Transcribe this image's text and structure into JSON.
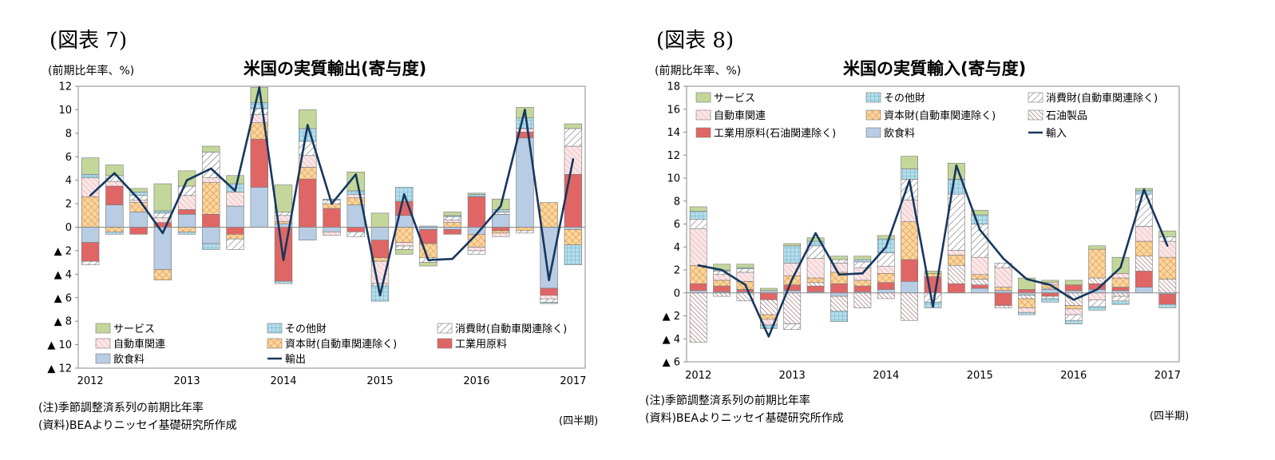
{
  "fig7": {
    "fig_label": "(図表 7)",
    "unit": "(前期比年率、%)",
    "note1": "(注)季節調整済系列の前期比年率",
    "note2": "(資料)BEAよりニッセイ基礎研究所作成",
    "period": "(四半期)"
  },
  "fig8": {
    "fig_label": "(図表 8)",
    "unit": "(前期比年率、%)",
    "note1": "(注)季節調整済系列の前期比年率",
    "note2": "(資料)BEAよりニッセイ基礎研究所作成",
    "period": "(四半期)"
  },
  "colors": {
    "services": "#c4d79b",
    "other": "#b7dde8",
    "consumer": "#ffffff",
    "auto": "#f2c9cc",
    "capital": "#fcd5a0",
    "petroleum": "#ffffff",
    "industrial": "#e06666",
    "food": "#b8cce4",
    "line": "#17375e"
  },
  "chart_data": [
    {
      "type": "bar",
      "title": "米国の実質輸出(寄与度)",
      "stacked": true,
      "ylim": [
        -12,
        12
      ],
      "y_ticks": [
        -12,
        -10,
        -8,
        -6,
        -4,
        -2,
        0,
        2,
        4,
        6,
        8,
        10,
        12
      ],
      "y_tick_labels": [
        "▲ 12",
        "▲ 10",
        "▲ 8",
        "▲ 6",
        "▲ 4",
        "▲ 2",
        "0",
        "2",
        "4",
        "6",
        "8",
        "10",
        "12"
      ],
      "x_tick_labels": [
        "2012",
        "2013",
        "2014",
        "2015",
        "2016",
        "2017"
      ],
      "legend_position": "bottom-left",
      "grid": false,
      "categories": [
        "2012Q1",
        "2012Q2",
        "2012Q3",
        "2012Q4",
        "2013Q1",
        "2013Q2",
        "2013Q3",
        "2013Q4",
        "2014Q1",
        "2014Q2",
        "2014Q3",
        "2014Q4",
        "2015Q1",
        "2015Q2",
        "2015Q3",
        "2015Q4",
        "2016Q1",
        "2016Q2",
        "2016Q3",
        "2016Q4",
        "2017Q1"
      ],
      "series": [
        {
          "name": "飲食料",
          "key": "food",
          "values": [
            -1.3,
            1.9,
            1.3,
            -3.6,
            1.1,
            -1.4,
            1.8,
            3.4,
            0.3,
            -1.1,
            -0.4,
            1.9,
            -1.1,
            1.0,
            -0.2,
            -0.2,
            -0.6,
            1.1,
            7.6,
            -5.2,
            -0.2
          ]
        },
        {
          "name": "工業用原料",
          "key": "industrial",
          "values": [
            -1.6,
            1.6,
            -0.6,
            0.4,
            0.4,
            1.1,
            -0.6,
            4.1,
            -4.6,
            4.1,
            1.6,
            -0.4,
            -1.5,
            1.2,
            -1.2,
            -0.4,
            2.6,
            -0.3,
            0.5,
            -0.6,
            4.5
          ]
        },
        {
          "name": "資本財(自動車関連除く)",
          "key": "capital",
          "values": [
            2.6,
            -0.4,
            0.8,
            -0.9,
            -0.4,
            2.7,
            -0.4,
            1.4,
            0.2,
            1.0,
            0.4,
            0.6,
            -0.3,
            -1.3,
            -1.2,
            0.4,
            -1.1,
            -0.2,
            -0.3,
            2.1,
            -1.3
          ]
        },
        {
          "name": "自動車関連",
          "key": "auto",
          "values": [
            1.6,
            0.4,
            0.2,
            0.4,
            1.2,
            0.4,
            1.2,
            0.7,
            0.5,
            1.0,
            -0.3,
            0.3,
            -1.9,
            -0.3,
            0.0,
            0.2,
            -0.3,
            -0.3,
            0.3,
            -0.3,
            2.4
          ]
        },
        {
          "name": "消費財(自動車関連除く)",
          "key": "consumer",
          "values": [
            -0.3,
            0.5,
            0.4,
            0.4,
            0.8,
            2.2,
            -0.9,
            0.5,
            0.3,
            1.2,
            0.3,
            -0.4,
            -0.2,
            -0.3,
            -0.4,
            0.3,
            -0.3,
            0.2,
            -0.2,
            -0.3,
            1.5
          ]
        },
        {
          "name": "その他財",
          "key": "other",
          "values": [
            0.3,
            -0.2,
            0.3,
            0.2,
            -0.2,
            -0.5,
            0.7,
            0.5,
            -0.2,
            1.1,
            0.1,
            0.3,
            -1.3,
            1.2,
            0.1,
            0.1,
            0.2,
            0.2,
            0.9,
            -0.1,
            -1.7
          ]
        },
        {
          "name": "サービス",
          "key": "services",
          "values": [
            1.4,
            0.9,
            0.3,
            2.3,
            1.3,
            0.5,
            0.7,
            1.3,
            2.3,
            1.6,
            0.0,
            1.6,
            1.2,
            -0.4,
            -0.3,
            0.3,
            0.1,
            0.9,
            0.9,
            0.0,
            0.4
          ]
        },
        {
          "name": "輸出",
          "key": "line",
          "type": "line",
          "values": [
            2.7,
            4.6,
            2.4,
            -0.5,
            4.0,
            5.0,
            3.1,
            11.9,
            -2.8,
            8.7,
            2.0,
            4.5,
            -5.8,
            2.8,
            -2.8,
            -2.7,
            -0.6,
            1.8,
            10.0,
            -4.5,
            5.8
          ]
        }
      ]
    },
    {
      "type": "bar",
      "title": "米国の実質輸入(寄与度)",
      "stacked": true,
      "ylim": [
        -6,
        18
      ],
      "y_ticks": [
        -6,
        -4,
        -2,
        0,
        2,
        4,
        6,
        8,
        10,
        12,
        14,
        16,
        18
      ],
      "y_tick_labels": [
        "▲ 6",
        "▲ 4",
        "▲ 2",
        "0",
        "2",
        "4",
        "6",
        "8",
        "10",
        "12",
        "14",
        "16",
        "18"
      ],
      "x_tick_labels": [
        "2012",
        "2013",
        "2014",
        "2015",
        "2016",
        "2017"
      ],
      "legend_position": "top",
      "grid": false,
      "categories": [
        "2012Q1",
        "2012Q2",
        "2012Q3",
        "2012Q4",
        "2013Q1",
        "2013Q2",
        "2013Q3",
        "2013Q4",
        "2014Q1",
        "2014Q2",
        "2014Q3",
        "2014Q4",
        "2015Q1",
        "2015Q2",
        "2015Q3",
        "2015Q4",
        "2016Q1",
        "2016Q2",
        "2016Q3",
        "2016Q4",
        "2017Q1"
      ],
      "series": [
        {
          "name": "飲食料",
          "key": "food",
          "values": [
            0.2,
            0.1,
            0.1,
            0.2,
            0.2,
            0.1,
            -0.3,
            0.1,
            0.3,
            1.0,
            0.0,
            0.0,
            0.4,
            0.2,
            -0.2,
            0.3,
            0.2,
            0.3,
            0.2,
            0.5,
            -0.1
          ]
        },
        {
          "name": "工業用原料(石油関連除く)",
          "key": "industrial",
          "values": [
            0.6,
            0.5,
            0.2,
            -0.6,
            0.5,
            0.5,
            0.8,
            0.5,
            0.6,
            1.9,
            1.4,
            0.8,
            0.3,
            -1.1,
            0.3,
            -0.3,
            0.5,
            0.5,
            0.3,
            1.4,
            -0.9
          ]
        },
        {
          "name": "石油製品",
          "key": "petroleum",
          "values": [
            -4.3,
            -0.3,
            -0.7,
            -1.3,
            -2.7,
            0.3,
            -1.3,
            -1.3,
            -0.5,
            -2.4,
            0.0,
            1.6,
            0.5,
            -0.2,
            -0.3,
            0.1,
            -1.1,
            0.5,
            -0.3,
            1.3,
            1.2
          ]
        },
        {
          "name": "資本財(自動車関連除く)",
          "key": "capital",
          "values": [
            1.6,
            0.5,
            0.7,
            -0.4,
            0.8,
            0.4,
            1.0,
            0.5,
            0.8,
            3.3,
            0.3,
            0.9,
            0.4,
            0.3,
            -0.8,
            0.3,
            -0.3,
            2.5,
            0.8,
            1.3,
            1.9
          ]
        },
        {
          "name": "自動車関連",
          "key": "auto",
          "values": [
            3.2,
            0.5,
            0.8,
            -0.5,
            1.1,
            1.7,
            0.8,
            1.1,
            0.6,
            1.9,
            0.0,
            0.4,
            1.5,
            1.7,
            -0.4,
            0.2,
            -0.5,
            -0.6,
            0.4,
            1.3,
            1.4
          ]
        },
        {
          "name": "消費財(自動車関連除く)",
          "key": "consumer",
          "values": [
            0.8,
            0.3,
            0.3,
            0.0,
            -0.5,
            1.1,
            0.3,
            0.5,
            1.2,
            1.8,
            -0.8,
            4.9,
            2.9,
            0.4,
            0.0,
            -0.2,
            -0.5,
            -0.6,
            -0.4,
            2.8,
            0.4
          ]
        },
        {
          "name": "その他財",
          "key": "other",
          "values": [
            0.7,
            0.1,
            0.1,
            -0.3,
            1.5,
            0.4,
            -0.9,
            0.2,
            1.2,
            0.9,
            -0.5,
            1.3,
            0.8,
            0.0,
            -0.2,
            -0.3,
            -0.3,
            -0.3,
            -0.3,
            0.3,
            -0.3
          ]
        },
        {
          "name": "サービス",
          "key": "services",
          "values": [
            0.4,
            0.5,
            0.3,
            0.2,
            0.2,
            0.3,
            0.3,
            0.3,
            0.3,
            1.1,
            0.2,
            1.4,
            0.4,
            0.0,
            1.0,
            0.2,
            0.4,
            0.3,
            1.4,
            0.2,
            0.5
          ]
        },
        {
          "name": "輸入",
          "key": "line",
          "type": "line",
          "values": [
            2.4,
            2.0,
            0.7,
            -3.8,
            1.2,
            5.2,
            1.6,
            1.7,
            4.0,
            9.8,
            -1.2,
            11.1,
            5.5,
            3.0,
            1.2,
            0.7,
            -0.6,
            0.3,
            2.2,
            9.0,
            4.1
          ]
        }
      ]
    }
  ]
}
